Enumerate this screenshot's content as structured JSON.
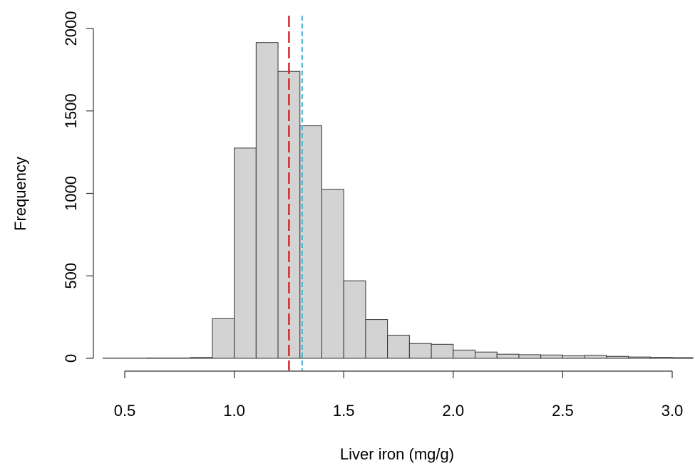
{
  "chart_data": {
    "type": "bar",
    "title": "",
    "xlabel": "Liver iron (mg/g)",
    "ylabel": "Frequency",
    "bin_edges": [
      0.4,
      0.5,
      0.6,
      0.7,
      0.8,
      0.9,
      1.0,
      1.1,
      1.2,
      1.3,
      1.4,
      1.5,
      1.6,
      1.7,
      1.8,
      1.9,
      2.0,
      2.1,
      2.2,
      2.3,
      2.4,
      2.5,
      2.6,
      2.7,
      2.8,
      2.9,
      3.0,
      3.1
    ],
    "values": [
      1,
      1,
      2,
      2,
      5,
      240,
      1275,
      1915,
      1740,
      1410,
      1025,
      470,
      235,
      140,
      90,
      85,
      50,
      38,
      25,
      22,
      20,
      15,
      18,
      12,
      8,
      6,
      4
    ],
    "xlim": [
      0.4,
      3.1
    ],
    "ylim": [
      0,
      2000
    ],
    "xticks": [
      0.5,
      1.0,
      1.5,
      2.0,
      2.5,
      3.0
    ],
    "xtick_labels": [
      "0.5",
      "1.0",
      "1.5",
      "2.0",
      "2.5",
      "3.0"
    ],
    "yticks": [
      0,
      500,
      1000,
      1500,
      2000
    ],
    "ytick_labels": [
      "0",
      "500",
      "1000",
      "1500",
      "2000"
    ],
    "reference_lines": [
      {
        "x": 1.25,
        "color": "#d62728",
        "style": "long-dash"
      },
      {
        "x": 1.31,
        "color": "#3fb2cf",
        "style": "short-dash"
      }
    ],
    "grid": false,
    "bar_fill": "#d3d3d3",
    "bar_stroke": "#333333"
  }
}
